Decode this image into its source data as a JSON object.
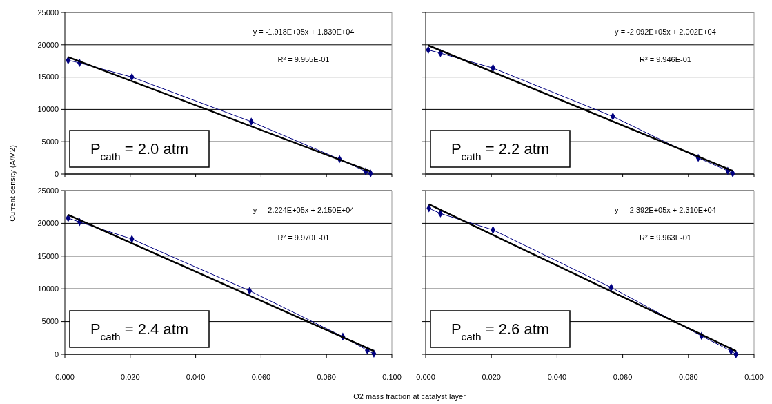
{
  "chart_data": [
    {
      "type": "line",
      "ylabel": "Current density (A/M2)",
      "xlim": [
        0,
        0.1
      ],
      "ylim": [
        0,
        25000
      ],
      "xticks": [
        {
          "value": 0,
          "label": null
        },
        {
          "value": 0.02,
          "label": null
        },
        {
          "value": 0.04,
          "label": null
        },
        {
          "value": 0.06,
          "label": null
        },
        {
          "value": 0.08,
          "label": null
        },
        {
          "value": 0.1,
          "label": null
        }
      ],
      "yticks": [
        0,
        5000,
        10000,
        15000,
        20000,
        25000
      ],
      "grid": "y",
      "tick_labels": "y",
      "marker": "diamond",
      "annotations": [
        "y = -1.918E+05x + 1.830E+04",
        "R² = 9.955E-01",
        "P$_{cath}$ = 2.0 atm"
      ],
      "series": [
        {
          "color": "#000080",
          "x": [
            0.001,
            0.0045,
            0.0205,
            0.057,
            0.084,
            0.092,
            0.0935
          ],
          "values": [
            17600,
            17200,
            15000,
            8100,
            2300,
            400,
            100
          ]
        },
        {
          "type": "line",
          "color": "#000000",
          "marker": "none",
          "x": [
            0.001,
            0.0935
          ],
          "values": [
            18100,
            400
          ]
        }
      ]
    },
    {
      "type": "line",
      "xlim": [
        0,
        0.1
      ],
      "ylim": [
        0,
        25000
      ],
      "xticks": [
        {
          "value": 0,
          "label": null
        },
        {
          "value": 0.02,
          "label": null
        },
        {
          "value": 0.04,
          "label": null
        },
        {
          "value": 0.06,
          "label": null
        },
        {
          "value": 0.08,
          "label": null
        },
        {
          "value": 0.1,
          "label": null
        }
      ],
      "yticks": [
        {
          "value": 0,
          "label": null
        },
        {
          "value": 5000,
          "label": null
        },
        {
          "value": 10000,
          "label": null
        },
        {
          "value": 15000,
          "label": null
        },
        {
          "value": 20000,
          "label": null
        },
        {
          "value": 25000,
          "label": null
        }
      ],
      "grid": "y",
      "tick_labels": false,
      "marker": "diamond",
      "annotations": [
        "y = -2.092E+05x + 2.002E+04",
        "R² = 9.946E-01",
        "P$_{cath}$ = 2.2 atm"
      ],
      "series": [
        {
          "color": "#000080",
          "x": [
            0.0008,
            0.0045,
            0.0205,
            0.057,
            0.083,
            0.092,
            0.0935
          ],
          "values": [
            19200,
            18700,
            16400,
            8900,
            2500,
            500,
            100
          ]
        },
        {
          "type": "line",
          "color": "#000000",
          "marker": "none",
          "x": [
            0.0008,
            0.0935
          ],
          "values": [
            19900,
            500
          ]
        }
      ]
    },
    {
      "type": "line",
      "xlabel": "O2 mass fraction at catalyst layer",
      "xlim": [
        0,
        0.1
      ],
      "ylim": [
        0,
        25000
      ],
      "xticks": [
        {
          "value": 0,
          "label": "0.000"
        },
        {
          "value": 0.02,
          "label": "0.020"
        },
        {
          "value": 0.04,
          "label": "0.040"
        },
        {
          "value": 0.06,
          "label": "0.060"
        },
        {
          "value": 0.08,
          "label": "0.080"
        },
        {
          "value": 0.1,
          "label": "0.100"
        }
      ],
      "yticks": [
        0,
        5000,
        10000,
        15000,
        20000,
        25000
      ],
      "grid": "y",
      "marker": "diamond",
      "annotations": [
        "y = -2.224E+05x + 2.150E+04",
        "R² = 9.970E-01",
        "P$_{cath}$ = 2.4 atm"
      ],
      "series": [
        {
          "color": "#000080",
          "x": [
            0.001,
            0.0045,
            0.0205,
            0.0565,
            0.085,
            0.0925,
            0.0945
          ],
          "values": [
            20800,
            20200,
            17600,
            9700,
            2700,
            600,
            100
          ]
        },
        {
          "type": "line",
          "color": "#000000",
          "marker": "none",
          "x": [
            0.001,
            0.0945
          ],
          "values": [
            21300,
            500
          ]
        }
      ]
    },
    {
      "type": "line",
      "xlim": [
        0,
        0.1
      ],
      "ylim": [
        0,
        25000
      ],
      "xticks": [
        {
          "value": 0,
          "label": "0.000"
        },
        {
          "value": 0.02,
          "label": "0.020"
        },
        {
          "value": 0.04,
          "label": "0.040"
        },
        {
          "value": 0.06,
          "label": "0.060"
        },
        {
          "value": 0.08,
          "label": "0.080"
        },
        {
          "value": 0.1,
          "label": "0.100"
        }
      ],
      "yticks": [
        {
          "value": 0,
          "label": null
        },
        {
          "value": 5000,
          "label": null
        },
        {
          "value": 10000,
          "label": null
        },
        {
          "value": 15000,
          "label": null
        },
        {
          "value": 20000,
          "label": null
        },
        {
          "value": 25000,
          "label": null
        }
      ],
      "grid": "y",
      "tick_labels": "x",
      "marker": "diamond",
      "annotations": [
        "y = -2.392E+05x + 2.310E+04",
        "R² = 9.963E-01",
        "P$_{cath}$ = 2.6 atm"
      ],
      "series": [
        {
          "color": "#000080",
          "x": [
            0.001,
            0.0045,
            0.0205,
            0.0565,
            0.084,
            0.093,
            0.0945
          ],
          "values": [
            22300,
            21500,
            19000,
            10200,
            2800,
            500,
            0
          ]
        },
        {
          "type": "line",
          "color": "#000000",
          "marker": "none",
          "x": [
            0.001,
            0.0945
          ],
          "values": [
            22900,
            500
          ]
        }
      ]
    }
  ]
}
